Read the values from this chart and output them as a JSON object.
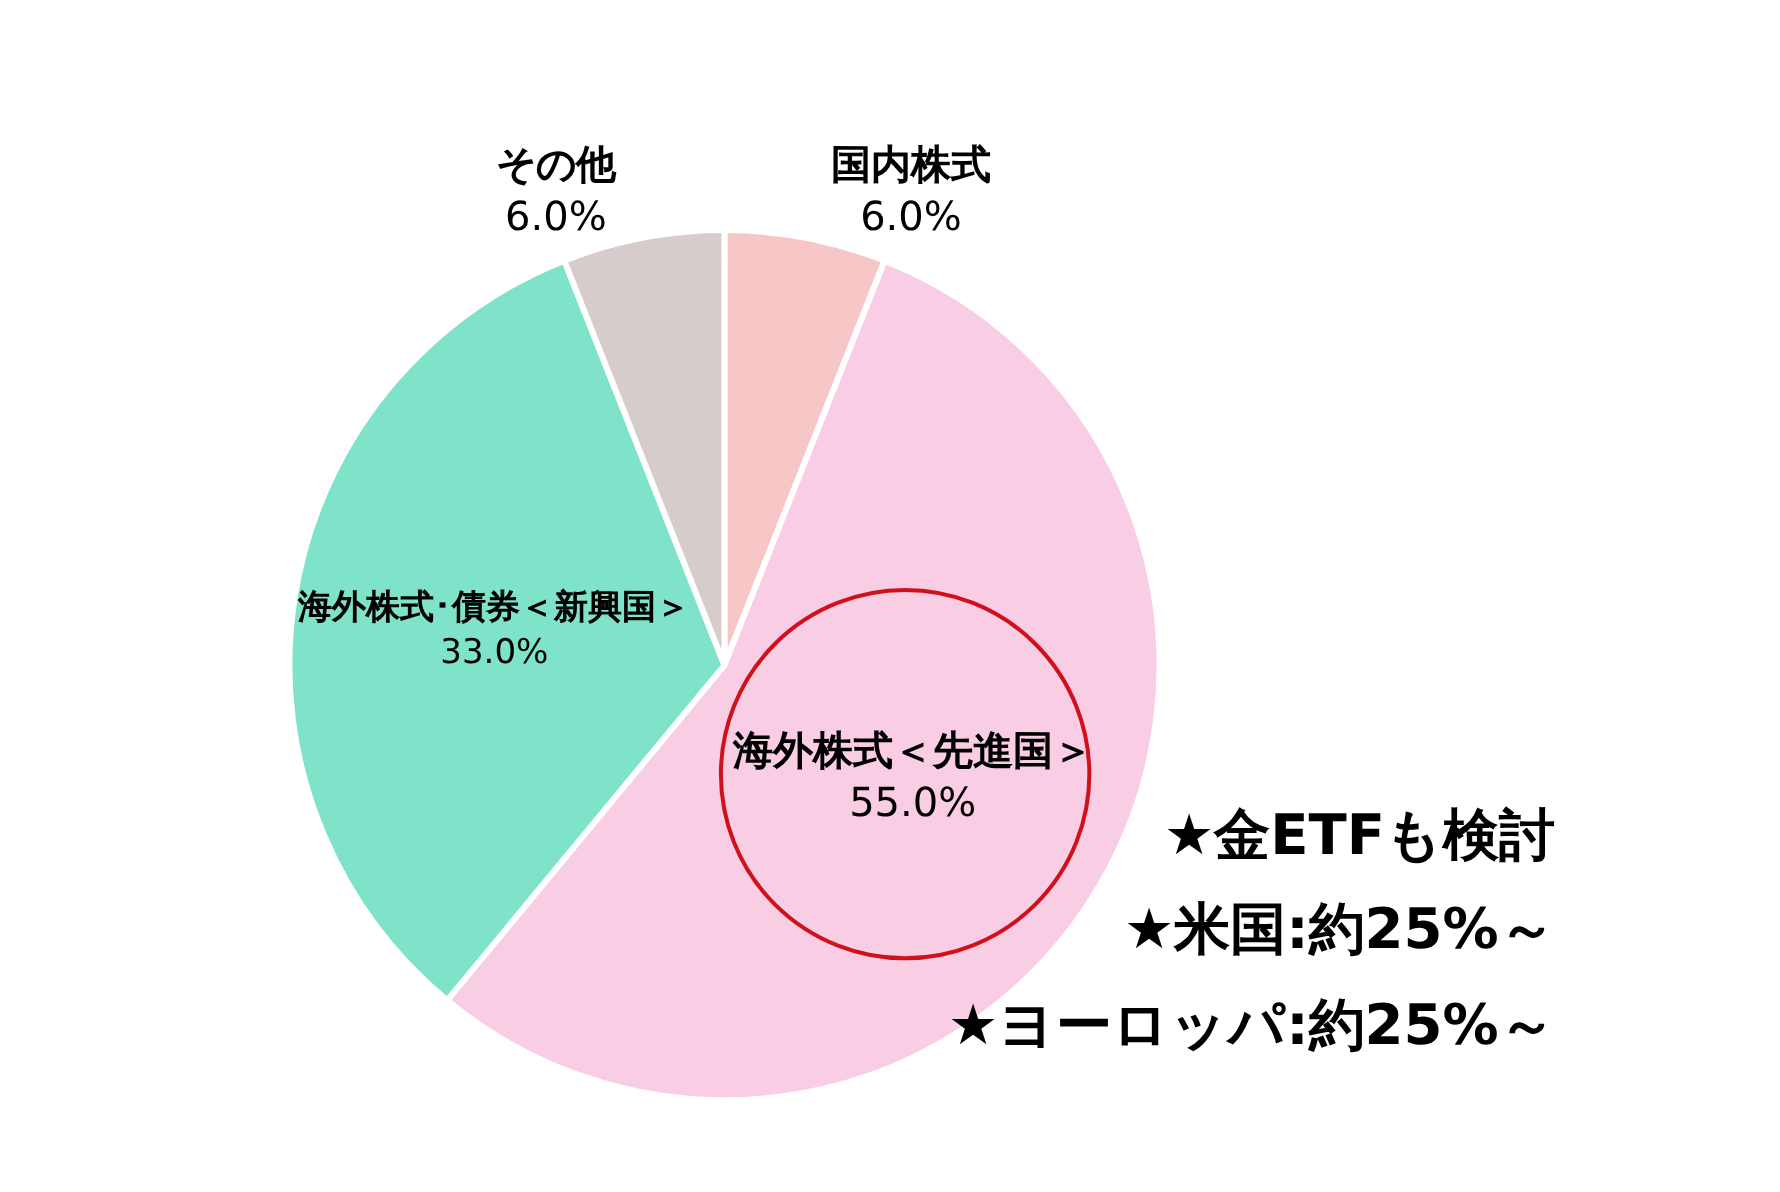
{
  "chart_data": {
    "type": "pie",
    "categories": [
      "国内株式",
      "海外株式＜先進国＞",
      "海外株式･債券＜新興国＞",
      "その他"
    ],
    "values": [
      6.0,
      55.0,
      33.0,
      6.0
    ],
    "value_labels": [
      "6.0%",
      "55.0%",
      "33.0%",
      "6.0%"
    ],
    "colors": [
      "#f7c6c6",
      "#f9cde3",
      "#7fe3c9",
      "#d6cccc"
    ],
    "legend": false,
    "annotations": [
      "★金ETFも検討",
      "★米国:約25%～",
      "★ヨーロッパ:約25%～"
    ]
  }
}
